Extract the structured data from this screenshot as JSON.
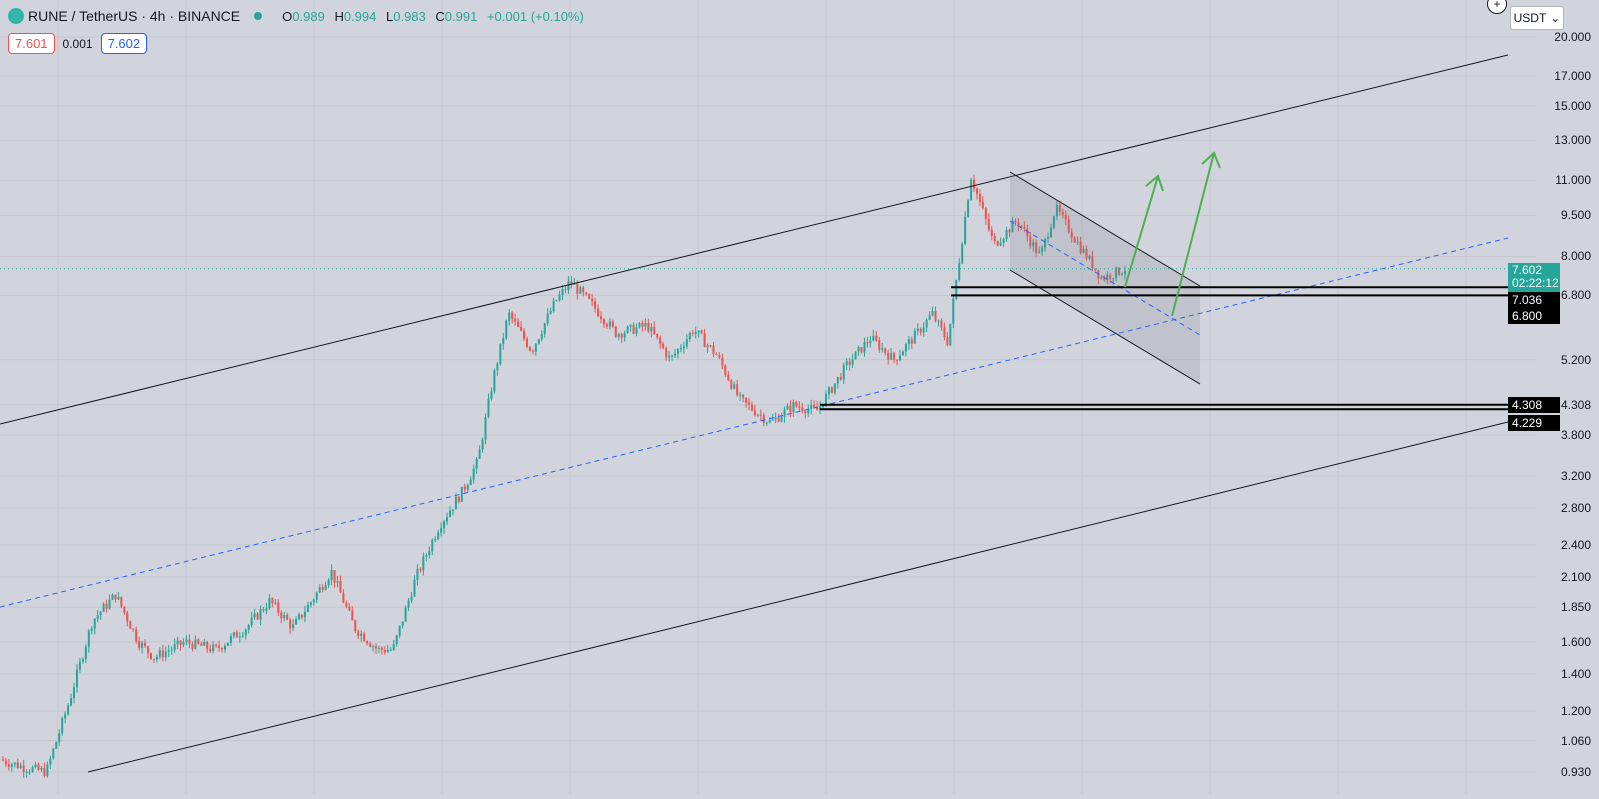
{
  "header": {
    "symbol": "RUNE / TetherUS · 4h · BINANCE",
    "open_label": "O",
    "open": "0.989",
    "high_label": "H",
    "high": "0.994",
    "low_label": "L",
    "low": "0.983",
    "close_label": "C",
    "close": "0.991",
    "change": "+0.001 (+0.10%)"
  },
  "trade": {
    "sell": "7.601",
    "spread": "0.001",
    "buy": "7.602"
  },
  "currency": "USDT",
  "colors": {
    "up": "#26a69a",
    "down": "#ef5350",
    "background": "#d1d4dc",
    "midline": "#2962ff",
    "arrow": "#4caf50"
  },
  "chart_data": {
    "type": "candlestick",
    "symbol": "RUNE/USDT",
    "interval": "4h",
    "scale": "log",
    "ylim": [
      0.9,
      21
    ],
    "y_ticks": [
      "20.000",
      "17.000",
      "15.000",
      "13.000",
      "11.000",
      "9.500",
      "8.000",
      "6.800",
      "5.200",
      "4.308",
      "3.800",
      "3.200",
      "2.800",
      "2.400",
      "2.100",
      "1.850",
      "1.600",
      "1.400",
      "1.200",
      "1.060",
      "0.930"
    ],
    "price_path": [
      [
        0,
        0.98
      ],
      [
        3,
        0.95
      ],
      [
        6,
        0.93
      ],
      [
        9,
        1.25
      ],
      [
        12,
        1.75
      ],
      [
        15,
        1.95
      ],
      [
        18,
        1.6
      ],
      [
        20,
        1.5
      ],
      [
        24,
        1.6
      ],
      [
        28,
        1.55
      ],
      [
        32,
        1.7
      ],
      [
        35,
        1.9
      ],
      [
        38,
        1.7
      ],
      [
        41,
        1.95
      ],
      [
        43,
        2.15
      ],
      [
        46,
        1.7
      ],
      [
        49,
        1.55
      ],
      [
        51,
        1.55
      ],
      [
        54,
        2.1
      ],
      [
        57,
        2.6
      ],
      [
        60,
        3.0
      ],
      [
        62,
        3.4
      ],
      [
        64,
        4.8
      ],
      [
        66,
        6.3
      ],
      [
        69,
        5.4
      ],
      [
        72,
        6.6
      ],
      [
        74,
        7.2
      ],
      [
        77,
        6.5
      ],
      [
        80,
        5.8
      ],
      [
        84,
        6.0
      ],
      [
        87,
        5.2
      ],
      [
        90,
        5.9
      ],
      [
        93,
        5.3
      ],
      [
        96,
        4.4
      ],
      [
        100,
        4.0
      ],
      [
        103,
        4.3
      ],
      [
        106,
        4.2
      ],
      [
        110,
        5.1
      ],
      [
        113,
        5.7
      ],
      [
        116,
        5.2
      ],
      [
        119,
        5.8
      ],
      [
        121,
        6.3
      ],
      [
        123,
        5.6
      ],
      [
        126,
        11.2
      ],
      [
        129,
        8.4
      ],
      [
        132,
        9.3
      ],
      [
        135,
        8.0
      ],
      [
        137,
        9.8
      ],
      [
        140,
        8.4
      ],
      [
        143,
        7.3
      ],
      [
        146,
        7.6
      ]
    ],
    "levels": [
      {
        "price": 7.036,
        "label": "7.036"
      },
      {
        "price": 6.8,
        "label": "6.800"
      },
      {
        "price": 4.308,
        "label": "4.308"
      },
      {
        "price": 4.229,
        "label": "4.229"
      }
    ],
    "last_price": "7.602",
    "countdown": "02:22:12",
    "annotations": [
      "ascending channel",
      "descending channel",
      "two upside arrows"
    ]
  }
}
